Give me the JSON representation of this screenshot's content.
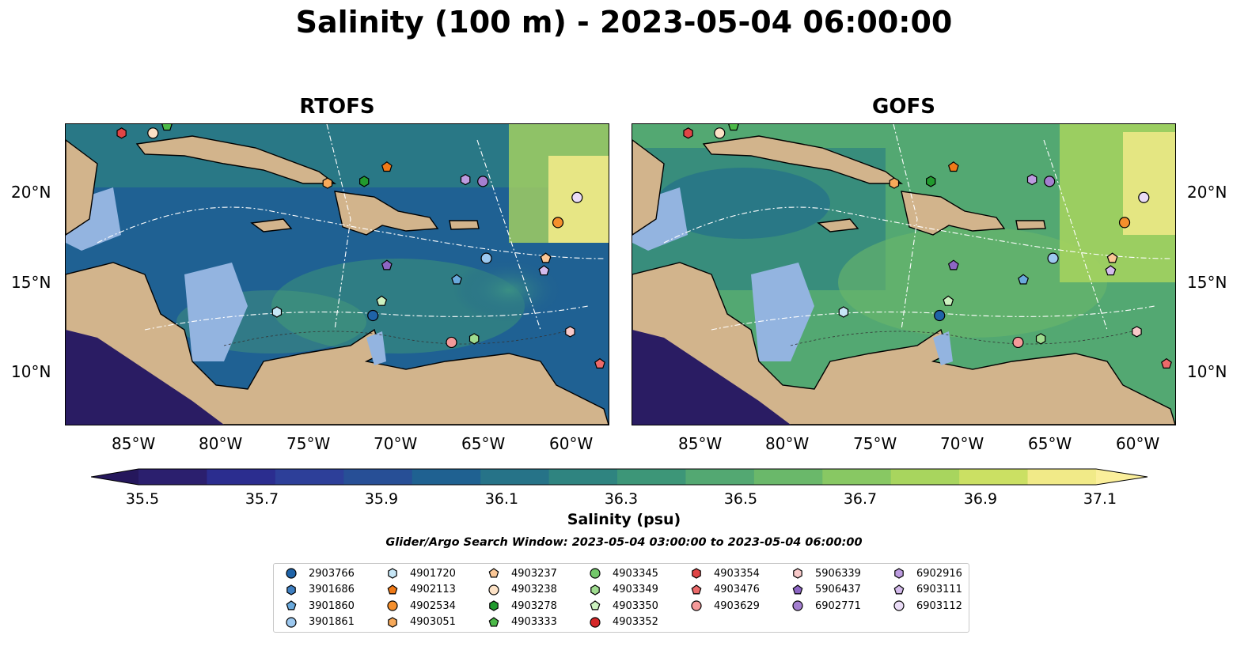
{
  "title": "Salinity (100 m) - 2023-05-04 06:00:00",
  "panels": [
    {
      "title": "RTOFS"
    },
    {
      "title": "GOFS"
    }
  ],
  "axes": {
    "lat_ticks": [
      "20°N",
      "15°N",
      "10°N"
    ],
    "lon_ticks": [
      "85°W",
      "80°W",
      "75°W",
      "70°W",
      "65°W",
      "60°W"
    ]
  },
  "colorbar": {
    "label": "Salinity (psu)",
    "ticks": [
      "35.5",
      "35.7",
      "35.9",
      "36.1",
      "36.3",
      "36.5",
      "36.7",
      "36.9",
      "37.1"
    ],
    "colors": [
      "#2b1f6e",
      "#2b2d8f",
      "#2d3f99",
      "#274f96",
      "#1f6191",
      "#267388",
      "#2f8480",
      "#3d9678",
      "#53a872",
      "#6ab86a",
      "#88c863",
      "#a8d55e",
      "#cbe063",
      "#f1ea88"
    ],
    "extend_low": "#25175c",
    "extend_high": "#fbef9b"
  },
  "search_window": "Glider/Argo Search Window: 2023-05-04 03:00:00 to 2023-05-04 06:00:00",
  "legend": {
    "columns": [
      [
        {
          "label": "2903766",
          "marker": "circle",
          "color": "#1f63a8"
        },
        {
          "label": "3901686",
          "marker": "hexagon",
          "color": "#3e7fc1"
        },
        {
          "label": "3901860",
          "marker": "pentagon",
          "color": "#6aa9dc"
        },
        {
          "label": "3901861",
          "marker": "circle",
          "color": "#9cc8ef"
        }
      ],
      [
        {
          "label": "4901720",
          "marker": "hexagon",
          "color": "#c6e6f6"
        },
        {
          "label": "4902113",
          "marker": "pentagon",
          "color": "#f07a18"
        },
        {
          "label": "4902534",
          "marker": "circle",
          "color": "#f58f2c"
        },
        {
          "label": "4903051",
          "marker": "hexagon",
          "color": "#f7a95a"
        }
      ],
      [
        {
          "label": "4903237",
          "marker": "pentagon",
          "color": "#fbc796"
        },
        {
          "label": "4903238",
          "marker": "circle",
          "color": "#fde2c6"
        },
        {
          "label": "4903278",
          "marker": "hexagon",
          "color": "#219a2e"
        },
        {
          "label": "4903333",
          "marker": "pentagon",
          "color": "#4cb948"
        }
      ],
      [
        {
          "label": "4903345",
          "marker": "circle",
          "color": "#73c86a"
        },
        {
          "label": "4903349",
          "marker": "hexagon",
          "color": "#9fdc8f"
        },
        {
          "label": "4903350",
          "marker": "pentagon",
          "color": "#cdf2c0"
        },
        {
          "label": "4903352",
          "marker": "circle",
          "color": "#d62728"
        }
      ],
      [
        {
          "label": "4903354",
          "marker": "hexagon",
          "color": "#e04546"
        },
        {
          "label": "4903476",
          "marker": "pentagon",
          "color": "#ec6a6a"
        },
        {
          "label": "4903629",
          "marker": "circle",
          "color": "#f59a9a"
        }
      ],
      [
        {
          "label": "5906339",
          "marker": "hexagon",
          "color": "#f8c9c9"
        },
        {
          "label": "5906437",
          "marker": "pentagon",
          "color": "#8d66c4"
        },
        {
          "label": "6902771",
          "marker": "circle",
          "color": "#a47fd0"
        }
      ],
      [
        {
          "label": "6902916",
          "marker": "hexagon",
          "color": "#bd9ce0"
        },
        {
          "label": "6903111",
          "marker": "pentagon",
          "color": "#d4bbec"
        },
        {
          "label": "6903112",
          "marker": "circle",
          "color": "#eadcf6"
        }
      ]
    ]
  },
  "floats": [
    {
      "id": "4903354",
      "lon": -85.8,
      "lat": 23.3
    },
    {
      "id": "4903238",
      "lon": -84.0,
      "lat": 23.3
    },
    {
      "id": "4903333",
      "lon": -83.2,
      "lat": 23.7
    },
    {
      "id": "4903051",
      "lon": -74.0,
      "lat": 20.5
    },
    {
      "id": "4903278",
      "lon": -71.9,
      "lat": 20.6
    },
    {
      "id": "4902113",
      "lon": -70.6,
      "lat": 21.4
    },
    {
      "id": "6902916",
      "lon": -66.1,
      "lat": 20.7
    },
    {
      "id": "6902771",
      "lon": -65.1,
      "lat": 20.6
    },
    {
      "id": "6903112",
      "lon": -59.7,
      "lat": 19.7
    },
    {
      "id": "4902534",
      "lon": -60.8,
      "lat": 18.3
    },
    {
      "id": "3901861",
      "lon": -64.9,
      "lat": 16.3
    },
    {
      "id": "5906437",
      "lon": -70.6,
      "lat": 15.9
    },
    {
      "id": "4903237",
      "lon": -61.5,
      "lat": 16.3
    },
    {
      "id": "6903111",
      "lon": -61.6,
      "lat": 15.6
    },
    {
      "id": "3901860",
      "lon": -66.6,
      "lat": 15.1
    },
    {
      "id": "4903350",
      "lon": -70.9,
      "lat": 13.9
    },
    {
      "id": "4901720",
      "lon": -76.9,
      "lat": 13.3
    },
    {
      "id": "2903766",
      "lon": -71.4,
      "lat": 13.1
    },
    {
      "id": "4903349",
      "lon": -65.6,
      "lat": 11.8
    },
    {
      "id": "4903629",
      "lon": -66.9,
      "lat": 11.6
    },
    {
      "id": "5906339",
      "lon": -60.1,
      "lat": 12.2
    },
    {
      "id": "4903476",
      "lon": -58.4,
      "lat": 10.4
    }
  ]
}
